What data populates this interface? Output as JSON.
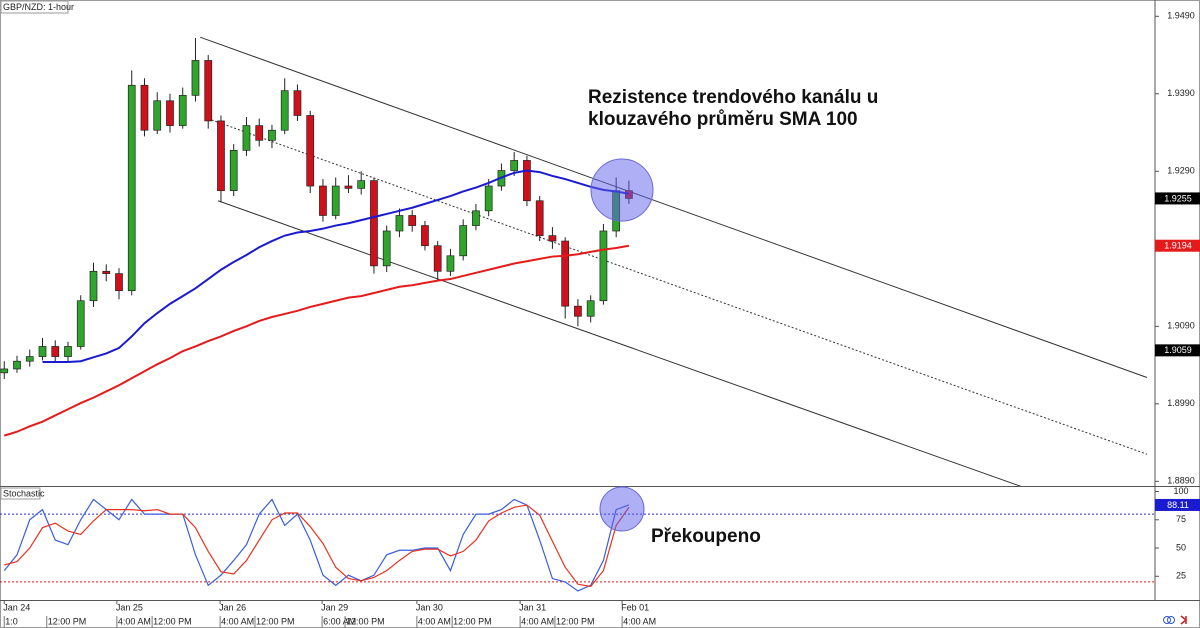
{
  "chart_data": [
    {
      "type": "candlestick",
      "title": "GBP/NZD: 1-hour",
      "xlim": [
        -1,
        270.8
      ],
      "x": [
        0,
        3,
        6,
        9,
        12,
        15,
        18,
        21,
        24,
        27,
        30,
        33,
        36,
        39,
        42,
        45,
        48,
        51,
        54,
        57,
        60,
        63,
        66,
        69,
        72,
        75,
        78,
        81,
        84,
        87,
        90,
        93,
        96,
        99,
        102,
        105,
        108,
        111,
        114,
        117,
        120,
        123,
        126,
        129,
        132,
        135,
        138,
        141,
        144,
        147
      ],
      "ohlc": [
        [
          1.903,
          1.9045,
          1.9022,
          1.9035
        ],
        [
          1.9035,
          1.9052,
          1.903,
          1.9045
        ],
        [
          1.9045,
          1.906,
          1.9038,
          1.9051
        ],
        [
          1.9051,
          1.9075,
          1.9046,
          1.9064
        ],
        [
          1.9064,
          1.9072,
          1.9044,
          1.9051
        ],
        [
          1.9051,
          1.907,
          1.9045,
          1.9064
        ],
        [
          1.9064,
          1.913,
          1.906,
          1.9123
        ],
        [
          1.9123,
          1.9172,
          1.9115,
          1.9161
        ],
        [
          1.9161,
          1.917,
          1.9148,
          1.9158
        ],
        [
          1.9158,
          1.9165,
          1.9125,
          1.9136
        ],
        [
          1.9136,
          1.942,
          1.913,
          1.9401
        ],
        [
          1.9401,
          1.941,
          1.9335,
          1.9343
        ],
        [
          1.9343,
          1.9392,
          1.9338,
          1.9381
        ],
        [
          1.9381,
          1.939,
          1.934,
          1.9349
        ],
        [
          1.9349,
          1.9398,
          1.9345,
          1.9388
        ],
        [
          1.9388,
          1.9462,
          1.938,
          1.9433
        ],
        [
          1.9433,
          1.944,
          1.9345,
          1.9355
        ],
        [
          1.9355,
          1.9362,
          1.925,
          1.9265
        ],
        [
          1.9265,
          1.9325,
          1.9258,
          1.9317
        ],
        [
          1.9317,
          1.936,
          1.931,
          1.9349
        ],
        [
          1.9349,
          1.9358,
          1.9322,
          1.933
        ],
        [
          1.933,
          1.935,
          1.932,
          1.9343
        ],
        [
          1.9343,
          1.941,
          1.9338,
          1.9394
        ],
        [
          1.9394,
          1.9402,
          1.9355,
          1.9362
        ],
        [
          1.9362,
          1.9368,
          1.9262,
          1.9271
        ],
        [
          1.9271,
          1.928,
          1.9225,
          1.9233
        ],
        [
          1.9233,
          1.9282,
          1.9228,
          1.9271
        ],
        [
          1.9271,
          1.9285,
          1.9262,
          1.9268
        ],
        [
          1.9268,
          1.929,
          1.926,
          1.9278
        ],
        [
          1.9278,
          1.9282,
          1.9158,
          1.9168
        ],
        [
          1.9168,
          1.922,
          1.916,
          1.9213
        ],
        [
          1.9213,
          1.9242,
          1.9205,
          1.9233
        ],
        [
          1.9233,
          1.924,
          1.9212,
          1.922
        ],
        [
          1.922,
          1.9226,
          1.9188,
          1.9194
        ],
        [
          1.9194,
          1.92,
          1.915,
          1.9161
        ],
        [
          1.9161,
          1.919,
          1.9155,
          1.9181
        ],
        [
          1.9181,
          1.9228,
          1.9175,
          1.922
        ],
        [
          1.922,
          1.9248,
          1.9214,
          1.9239
        ],
        [
          1.9239,
          1.928,
          1.9232,
          1.9271
        ],
        [
          1.9271,
          1.93,
          1.9265,
          1.9291
        ],
        [
          1.9291,
          1.9315,
          1.9284,
          1.9304
        ],
        [
          1.9304,
          1.931,
          1.9245,
          1.9252
        ],
        [
          1.9252,
          1.9258,
          1.92,
          1.9207
        ],
        [
          1.9207,
          1.9218,
          1.919,
          1.92
        ],
        [
          1.92,
          1.9205,
          1.91,
          1.9116
        ],
        [
          1.9116,
          1.9125,
          1.909,
          1.9103
        ],
        [
          1.9103,
          1.913,
          1.9095,
          1.9123
        ],
        [
          1.9123,
          1.9222,
          1.9118,
          1.9213
        ],
        [
          1.9213,
          1.9282,
          1.9205,
          1.9265
        ],
        [
          1.9265,
          1.9278,
          1.9248,
          1.9255
        ]
      ],
      "up_color": "#2fa52b",
      "down_color": "#d0101a",
      "lines": [
        {
          "color": "#1a1ad0",
          "values": [
            null,
            null,
            null,
            1.9044,
            1.9044,
            1.9044,
            1.9045,
            1.905,
            1.9055,
            1.9062,
            1.9077,
            1.9094,
            1.9107,
            1.9119,
            1.9129,
            1.9139,
            1.9151,
            1.9163,
            1.9173,
            1.9182,
            1.9192,
            1.92,
            1.9207,
            1.9211,
            1.9213,
            1.9216,
            1.922,
            1.9223,
            1.9227,
            1.9231,
            1.9235,
            1.9239,
            1.9243,
            1.9248,
            1.9253,
            1.9258,
            1.9264,
            1.9269,
            1.9275,
            1.9282,
            1.9288,
            1.9291,
            1.9289,
            1.9284,
            1.928,
            1.9275,
            1.927,
            1.9266,
            1.9264,
            1.9261
          ]
        },
        {
          "color": "#e51b1b",
          "values": [
            1.8949,
            1.8954,
            1.8961,
            1.8967,
            1.8975,
            1.8983,
            1.8991,
            1.8998,
            1.9006,
            1.9014,
            1.9023,
            1.9032,
            1.9041,
            1.9049,
            1.9058,
            1.9064,
            1.9071,
            1.9077,
            1.9084,
            1.909,
            1.9097,
            1.9102,
            1.9106,
            1.911,
            1.9115,
            1.9119,
            1.9123,
            1.9127,
            1.9129,
            1.9133,
            1.9137,
            1.9141,
            1.9143,
            1.9146,
            1.9149,
            1.9151,
            1.9155,
            1.9159,
            1.9163,
            1.9167,
            1.9171,
            1.9174,
            1.9177,
            1.918,
            1.9181,
            1.9183,
            1.9186,
            1.9189,
            1.9191,
            1.9194
          ]
        }
      ],
      "trend_lines": [
        {
          "style": "solid",
          "x": [
            46.1,
            268.9
          ],
          "values": [
            1.9463,
            1.9024
          ]
        },
        {
          "style": "dotted",
          "x": [
            47.9,
            268.9
          ],
          "values": [
            1.9358,
            1.8925
          ]
        },
        {
          "style": "solid",
          "x": [
            50.3,
            239.5
          ],
          "values": [
            1.9252,
            1.8883
          ]
        }
      ],
      "ylim": [
        1.8884,
        1.9511
      ],
      "yticks": [
        {
          "value": 1.889,
          "label": "1.8890"
        },
        {
          "value": 1.899,
          "label": "1.8990"
        },
        {
          "value": 1.909,
          "label": "1.9090"
        },
        {
          "value": 1.929,
          "label": "1.9290"
        },
        {
          "value": 1.939,
          "label": "1.9390"
        },
        {
          "value": 1.949,
          "label": "1.9490"
        }
      ],
      "price_tags": [
        {
          "value": 1.9255,
          "color": "#000000"
        },
        {
          "value": 1.9194,
          "color": "#e51b1b"
        },
        {
          "value": 1.9059,
          "color": "#000000"
        }
      ],
      "annotations": [
        {
          "lines": [
            "Rezistence trendového kanálu u",
            "klouzavého průměru SMA 100"
          ]
        }
      ]
    },
    {
      "type": "line",
      "title": "Stochastic",
      "xlim": [
        -1,
        270.8
      ],
      "x": [
        0,
        3,
        6,
        9,
        12,
        15,
        18,
        21,
        24,
        27,
        30,
        33,
        36,
        39,
        42,
        45,
        48,
        51,
        54,
        57,
        60,
        63,
        66,
        69,
        72,
        75,
        78,
        81,
        84,
        87,
        90,
        93,
        96,
        99,
        102,
        105,
        108,
        111,
        114,
        117,
        120,
        123,
        126,
        129,
        132,
        135,
        138,
        141,
        144,
        147
      ],
      "series": [
        {
          "color": "#3a5ee0",
          "values": [
            30,
            44,
            75,
            84,
            57,
            53,
            75,
            93,
            84,
            75,
            93,
            80,
            80,
            80,
            80,
            44,
            17,
            26,
            39,
            53,
            80,
            93,
            70,
            80,
            57,
            26,
            17,
            26,
            21,
            26,
            44,
            48,
            48,
            50,
            50,
            30,
            62,
            80,
            80,
            84,
            93,
            88,
            57,
            23,
            20,
            12,
            17,
            39,
            84,
            88.11
          ]
        },
        {
          "color": "#e8321e",
          "values": [
            35,
            38,
            50,
            68,
            72,
            65,
            62,
            74,
            84,
            84,
            84,
            83,
            84,
            80,
            80,
            68,
            47,
            29,
            27,
            39,
            57,
            75,
            81,
            81,
            69,
            54,
            33,
            23,
            21,
            24,
            30,
            39,
            47,
            49,
            49,
            43,
            47,
            57,
            74,
            81,
            86,
            88,
            79,
            56,
            33,
            18,
            16,
            30,
            70,
            86
          ]
        }
      ],
      "levels": [
        {
          "value": 80,
          "color": "#2a2ad8"
        },
        {
          "value": 20,
          "color": "#e01010"
        }
      ],
      "ylim": [
        4,
        104
      ],
      "yticks": [
        25,
        50,
        75,
        100
      ],
      "value_tag": {
        "value": 88.11,
        "color": "#1a1ad0"
      },
      "annotations": [
        {
          "lines": [
            "Překoupeno"
          ]
        }
      ],
      "day_ticks": [
        {
          "value": 0,
          "label": "Jan 24"
        },
        {
          "value": 26.5,
          "label": "Jan 25"
        },
        {
          "value": 50.8,
          "label": "Jan 26"
        },
        {
          "value": 74.8,
          "label": "Jan 29"
        },
        {
          "value": 97.1,
          "label": "Jan 30"
        },
        {
          "value": 121.4,
          "label": "Jan 31"
        },
        {
          "value": 145.4,
          "label": "Feb 01"
        }
      ],
      "xticks": [
        {
          "value": 0,
          "label": "1:0"
        },
        {
          "value": 10,
          "label": "12:00 PM"
        },
        {
          "value": 26.5,
          "label": "4:00 AM"
        },
        {
          "value": 34.8,
          "label": "12:00 PM"
        },
        {
          "value": 50.8,
          "label": "4:00 AM"
        },
        {
          "value": 59,
          "label": "12:00 PM"
        },
        {
          "value": 74.8,
          "label": "6:00 AM"
        },
        {
          "value": 80.2,
          "label": "12:00 PM"
        },
        {
          "value": 97.1,
          "label": "4:00 AM"
        },
        {
          "value": 105.4,
          "label": "12:00 PM"
        },
        {
          "value": 121.4,
          "label": "4:00 AM"
        },
        {
          "value": 129.6,
          "label": "12:00 PM"
        },
        {
          "value": 145.4,
          "label": "4:00 AM"
        }
      ]
    }
  ]
}
